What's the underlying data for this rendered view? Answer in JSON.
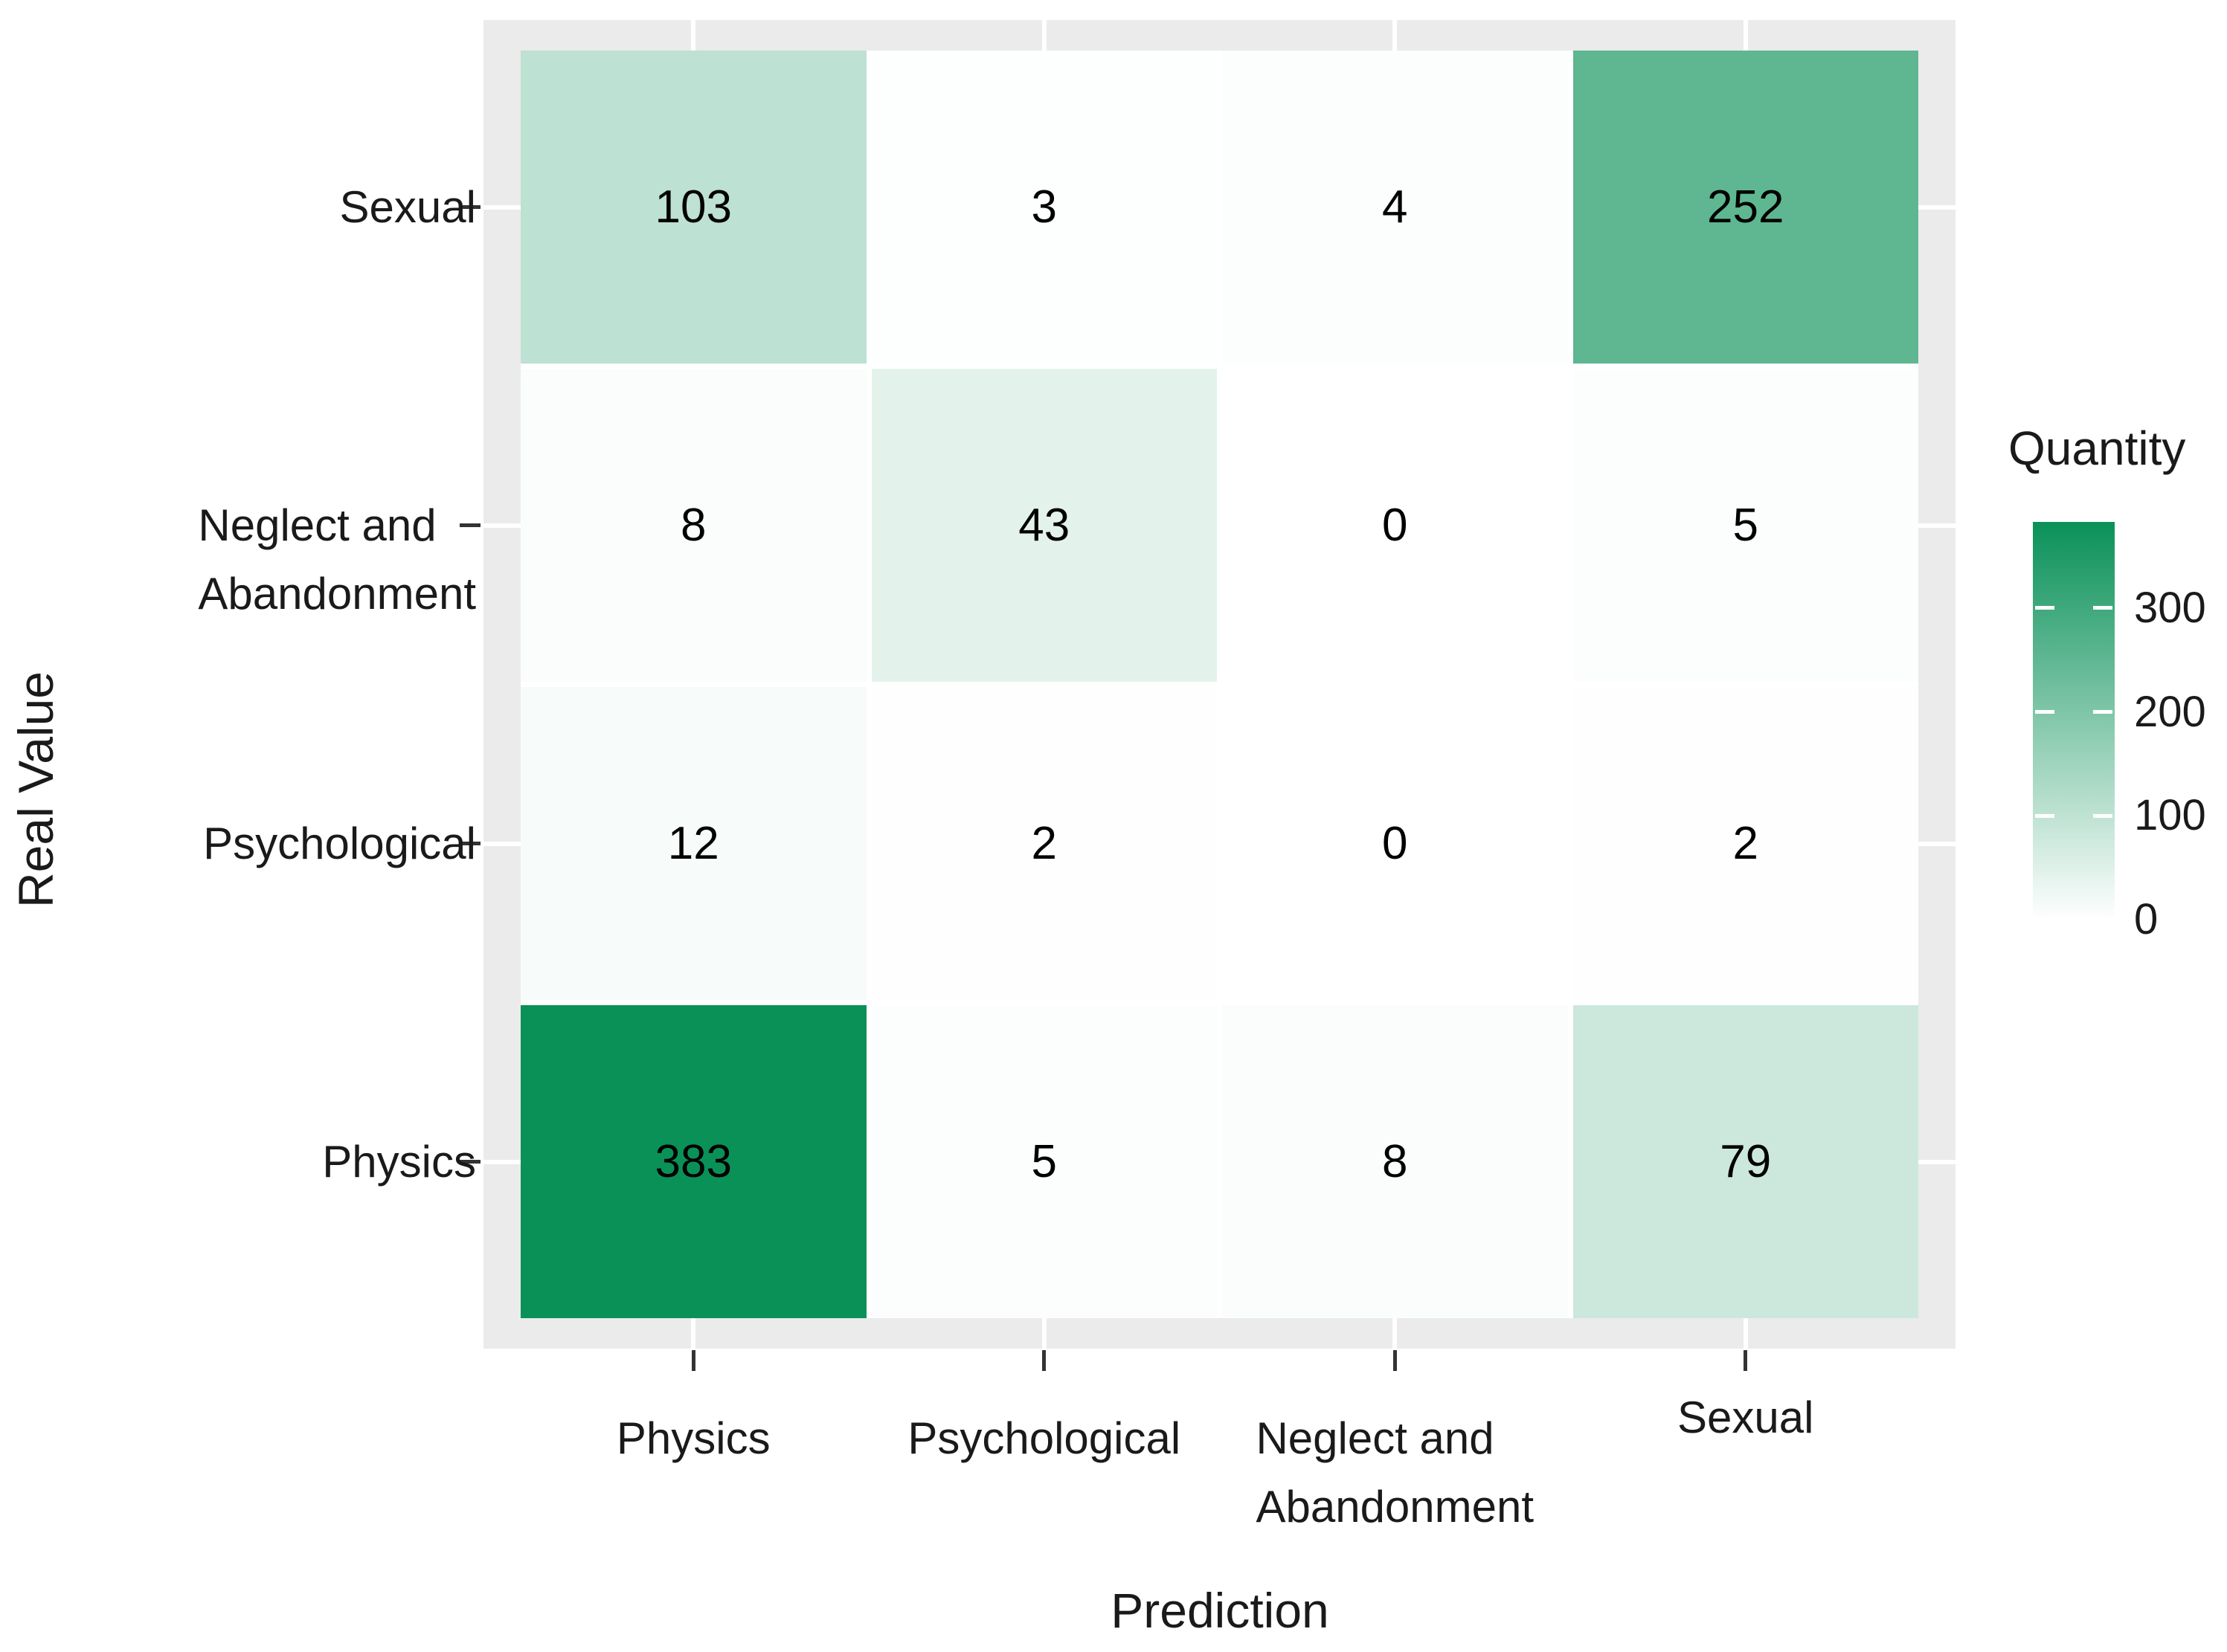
{
  "figure": {
    "x_axis_title": "Prediction",
    "y_axis_title": "Real Value",
    "legend_title": "Quantity"
  },
  "chart_data": {
    "type": "heatmap",
    "title": "",
    "xlabel": "Prediction",
    "ylabel": "Real Value",
    "x_categories": [
      "Physics",
      "Psychological",
      "Neglect and Abandonment",
      "Sexual"
    ],
    "y_categories_top_to_bottom": [
      "Sexual",
      "Neglect and Abandonment",
      "Psychological",
      "Physics"
    ],
    "x_tick_lines": [
      [
        "Physics"
      ],
      [
        "Psychological"
      ],
      [
        "Neglect and",
        "Abandonment"
      ],
      [
        "Sexual"
      ]
    ],
    "y_tick_lines": [
      [
        "Sexual"
      ],
      [
        "Neglect and",
        "Abandonment"
      ],
      [
        "Psychological"
      ],
      [
        "Physics"
      ]
    ],
    "matrix_rows_top_to_bottom": [
      [
        103,
        3,
        4,
        252
      ],
      [
        8,
        43,
        0,
        5
      ],
      [
        12,
        2,
        0,
        2
      ],
      [
        383,
        5,
        8,
        79
      ]
    ],
    "value_min": 0,
    "value_max": 383,
    "legend": {
      "title": "Quantity",
      "ticks": [
        300,
        200,
        100,
        0
      ],
      "position": "right"
    },
    "colors": {
      "low": "#FFFFFF",
      "high": "#0A9158",
      "panel_background": "#EBEBEB",
      "gridline": "#FFFFFF",
      "tick_mark": "#333333",
      "text": "#1A1A1A",
      "cell_text": "#000000"
    },
    "grid": true,
    "legend_position": "right"
  }
}
